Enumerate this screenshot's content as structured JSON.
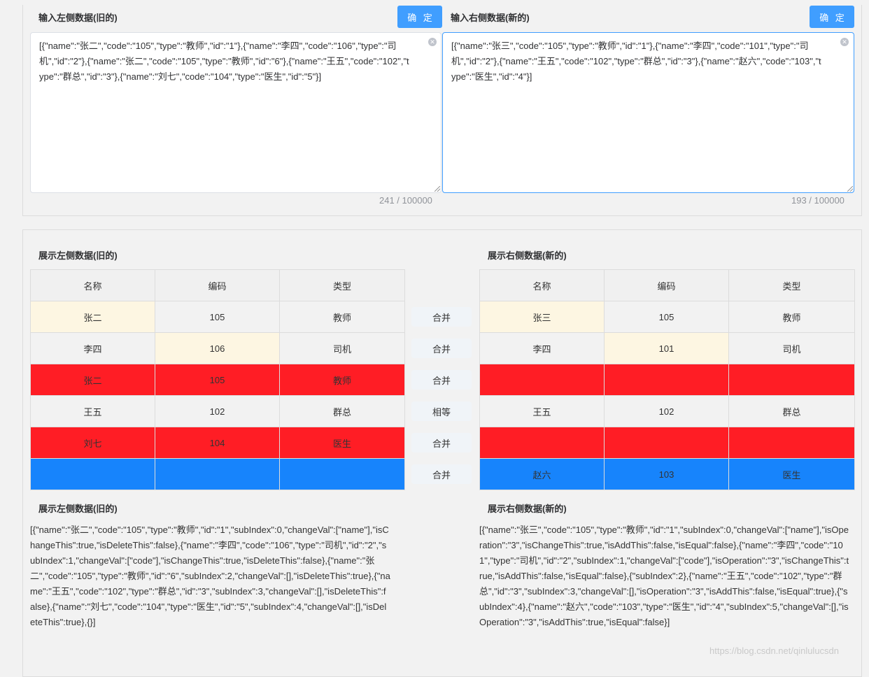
{
  "input": {
    "left": {
      "label": "输入左侧数据(旧的)",
      "button": "确 定",
      "value": "[{\"name\":\"张二\",\"code\":\"105\",\"type\":\"教师\",\"id\":\"1\"},{\"name\":\"李四\",\"code\":\"106\",\"type\":\"司机\",\"id\":\"2\"},{\"name\":\"张二\",\"code\":\"105\",\"type\":\"教师\",\"id\":\"6\"},{\"name\":\"王五\",\"code\":\"102\",\"type\":\"群总\",\"id\":\"3\"},{\"name\":\"刘七\",\"code\":\"104\",\"type\":\"医生\",\"id\":\"5\"}]",
      "counter": "241 / 100000"
    },
    "right": {
      "label": "输入右侧数据(新的)",
      "button": "确 定",
      "value": "[{\"name\":\"张三\",\"code\":\"105\",\"type\":\"教师\",\"id\":\"1\"},{\"name\":\"李四\",\"code\":\"101\",\"type\":\"司机\",\"id\":\"2\"},{\"name\":\"王五\",\"code\":\"102\",\"type\":\"群总\",\"id\":\"3\"},{\"name\":\"赵六\",\"code\":\"103\",\"type\":\"医生\",\"id\":\"4\"}]",
      "counter": "193 / 100000"
    }
  },
  "display": {
    "left_title": "展示左侧数据(旧的)",
    "right_title": "展示右侧数据(新的)",
    "columns": [
      "名称",
      "编码",
      "类型"
    ],
    "left_rows": [
      {
        "cells": [
          "张二",
          "105",
          "教师"
        ],
        "states": [
          "changed",
          "normal",
          "normal"
        ]
      },
      {
        "cells": [
          "李四",
          "106",
          "司机"
        ],
        "states": [
          "normal",
          "changed",
          "normal"
        ]
      },
      {
        "cells": [
          "张二",
          "105",
          "教师"
        ],
        "states": [
          "red",
          "red",
          "red"
        ]
      },
      {
        "cells": [
          "王五",
          "102",
          "群总"
        ],
        "states": [
          "normal",
          "normal",
          "normal"
        ]
      },
      {
        "cells": [
          "刘七",
          "104",
          "医生"
        ],
        "states": [
          "red",
          "red",
          "red"
        ]
      },
      {
        "cells": [
          "",
          "",
          ""
        ],
        "states": [
          "blue",
          "blue",
          "blue"
        ]
      }
    ],
    "right_rows": [
      {
        "cells": [
          "张三",
          "105",
          "教师"
        ],
        "states": [
          "changed",
          "normal",
          "normal"
        ]
      },
      {
        "cells": [
          "李四",
          "101",
          "司机"
        ],
        "states": [
          "normal",
          "changed",
          "normal"
        ]
      },
      {
        "cells": [
          "",
          "",
          ""
        ],
        "states": [
          "red",
          "red",
          "red"
        ]
      },
      {
        "cells": [
          "王五",
          "102",
          "群总"
        ],
        "states": [
          "normal",
          "normal",
          "normal"
        ]
      },
      {
        "cells": [
          "",
          "",
          ""
        ],
        "states": [
          "red",
          "red",
          "red"
        ]
      },
      {
        "cells": [
          "赵六",
          "103",
          "医生"
        ],
        "states": [
          "blue",
          "blue",
          "blue"
        ]
      }
    ],
    "actions": [
      "合并",
      "合并",
      "合并",
      "相等",
      "合并",
      "合并"
    ]
  },
  "result": {
    "left_title": "展示左侧数据(旧的)",
    "right_title": "展示右侧数据(新的)",
    "left_json": "[{\"name\":\"张二\",\"code\":\"105\",\"type\":\"教师\",\"id\":\"1\",\"subIndex\":0,\"changeVal\":[\"name\"],\"isChangeThis\":true,\"isDeleteThis\":false},{\"name\":\"李四\",\"code\":\"106\",\"type\":\"司机\",\"id\":\"2\",\"subIndex\":1,\"changeVal\":[\"code\"],\"isChangeThis\":true,\"isDeleteThis\":false},{\"name\":\"张二\",\"code\":\"105\",\"type\":\"教师\",\"id\":\"6\",\"subIndex\":2,\"changeVal\":[],\"isDeleteThis\":true},{\"name\":\"王五\",\"code\":\"102\",\"type\":\"群总\",\"id\":\"3\",\"subIndex\":3,\"changeVal\":[],\"isDeleteThis\":false},{\"name\":\"刘七\",\"code\":\"104\",\"type\":\"医生\",\"id\":\"5\",\"subIndex\":4,\"changeVal\":[],\"isDeleteThis\":true},{}]",
    "right_json": "[{\"name\":\"张三\",\"code\":\"105\",\"type\":\"教师\",\"id\":\"1\",\"subIndex\":0,\"changeVal\":[\"name\"],\"isOperation\":\"3\",\"isChangeThis\":true,\"isAddThis\":false,\"isEqual\":false},{\"name\":\"李四\",\"code\":\"101\",\"type\":\"司机\",\"id\":\"2\",\"subIndex\":1,\"changeVal\":[\"code\"],\"isOperation\":\"3\",\"isChangeThis\":true,\"isAddThis\":false,\"isEqual\":false},{\"subIndex\":2},{\"name\":\"王五\",\"code\":\"102\",\"type\":\"群总\",\"id\":\"3\",\"subIndex\":3,\"changeVal\":[],\"isOperation\":\"3\",\"isAddThis\":false,\"isEqual\":true},{\"subIndex\":4},{\"name\":\"赵六\",\"code\":\"103\",\"type\":\"医生\",\"id\":\"4\",\"subIndex\":5,\"changeVal\":[],\"isOperation\":\"3\",\"isAddThis\":true,\"isEqual\":false}]"
  },
  "watermark": "https://blog.csdn.net/qinlulucsdn",
  "colors": {
    "primary": "#409eff",
    "changed_cell": "#fdf6e2",
    "deleted_row": "#ff1d25",
    "added_row": "#1784fc"
  }
}
